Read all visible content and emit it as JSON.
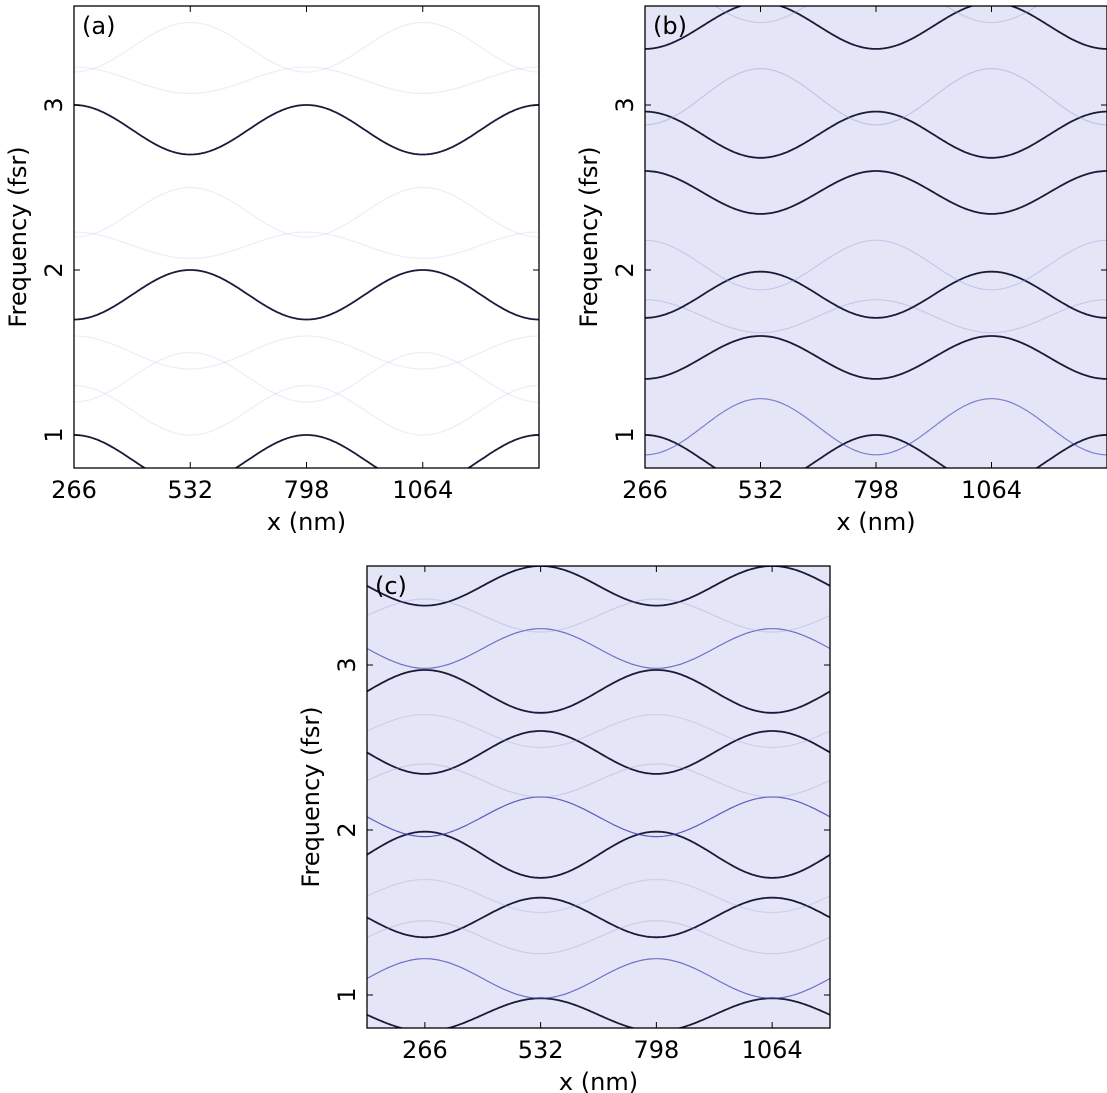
{
  "figure": {
    "panels": [
      {
        "label": "(a)",
        "xlabel": "x (nm)",
        "ylabel": "Frequency (fsr)"
      },
      {
        "label": "(b)",
        "xlabel": "x (nm)",
        "ylabel": "Frequency (fsr)"
      },
      {
        "label": "(c)",
        "xlabel": "x (nm)",
        "ylabel": "Frequency (fsr)"
      }
    ]
  },
  "colors": {
    "curve_dark": "#1a1a3a",
    "curve_mid": "#3a3ab0",
    "curve_light": "#9a9ad8",
    "background_tint": "#e4e6f8"
  },
  "chart_data": [
    {
      "type": "line",
      "panel": "(a)",
      "title": "",
      "xlabel": "x (nm)",
      "ylabel": "Frequency (fsr)",
      "x_ticks": [
        266,
        532,
        798,
        1064
      ],
      "x_tick_labels": [
        "266",
        "532",
        "798",
        "1064"
      ],
      "y_ticks": [
        1,
        2,
        3
      ],
      "y_tick_labels": [
        "1",
        "2",
        "3"
      ],
      "xlim": [
        266,
        1330
      ],
      "ylim": [
        0.8,
        3.6
      ],
      "period_nm": 532,
      "grid": false,
      "series": [
        {
          "center": 0.85,
          "amplitude": 0.15,
          "phase": 0,
          "intensity": 1.0
        },
        {
          "center": 1.15,
          "amplitude": 0.15,
          "phase": 0,
          "intensity": 0.1
        },
        {
          "center": 1.85,
          "amplitude": 0.15,
          "phase": 1,
          "intensity": 1.0
        },
        {
          "center": 1.35,
          "amplitude": 0.15,
          "phase": 1,
          "intensity": 0.1
        },
        {
          "center": 1.5,
          "amplitude": 0.1,
          "phase": 0,
          "intensity": 0.08
        },
        {
          "center": 2.35,
          "amplitude": 0.15,
          "phase": 1,
          "intensity": 0.1
        },
        {
          "center": 2.15,
          "amplitude": 0.08,
          "phase": 0,
          "intensity": 0.08
        },
        {
          "center": 2.85,
          "amplitude": 0.15,
          "phase": 0,
          "intensity": 1.0
        },
        {
          "center": 3.35,
          "amplitude": 0.15,
          "phase": 1,
          "intensity": 0.1
        },
        {
          "center": 3.15,
          "amplitude": 0.08,
          "phase": 0,
          "intensity": 0.08
        }
      ]
    },
    {
      "type": "line",
      "panel": "(b)",
      "title": "",
      "xlabel": "x (nm)",
      "ylabel": "Frequency (fsr)",
      "x_ticks": [
        266,
        532,
        798,
        1064
      ],
      "x_tick_labels": [
        "266",
        "532",
        "798",
        "1064"
      ],
      "y_ticks": [
        1,
        2,
        3
      ],
      "y_tick_labels": [
        "1",
        "2",
        "3"
      ],
      "xlim": [
        266,
        1330
      ],
      "ylim": [
        0.8,
        3.6
      ],
      "period_nm": 532,
      "grid": false,
      "series": [
        {
          "center": 0.85,
          "amplitude": 0.15,
          "phase": 0,
          "intensity": 1.0
        },
        {
          "center": 1.05,
          "amplitude": 0.17,
          "phase": 1,
          "intensity": 0.6
        },
        {
          "center": 1.47,
          "amplitude": 0.13,
          "phase": 1,
          "intensity": 1.0
        },
        {
          "center": 1.72,
          "amplitude": 0.1,
          "phase": 0,
          "intensity": 0.4
        },
        {
          "center": 1.85,
          "amplitude": 0.14,
          "phase": 1,
          "intensity": 1.0
        },
        {
          "center": 2.03,
          "amplitude": 0.15,
          "phase": 0,
          "intensity": 0.4
        },
        {
          "center": 2.47,
          "amplitude": 0.13,
          "phase": 0,
          "intensity": 1.0
        },
        {
          "center": 2.82,
          "amplitude": 0.14,
          "phase": 0,
          "intensity": 1.0
        },
        {
          "center": 3.05,
          "amplitude": 0.17,
          "phase": 1,
          "intensity": 0.45
        },
        {
          "center": 3.48,
          "amplitude": 0.14,
          "phase": 1,
          "intensity": 1.0
        },
        {
          "center": 3.65,
          "amplitude": 0.15,
          "phase": 0,
          "intensity": 0.4
        }
      ]
    },
    {
      "type": "line",
      "panel": "(c)",
      "title": "",
      "xlabel": "x (nm)",
      "ylabel": "Frequency (fsr)",
      "x_ticks": [
        266,
        532,
        798,
        1064
      ],
      "x_tick_labels": [
        "266",
        "532",
        "798",
        "1064"
      ],
      "y_ticks": [
        1,
        2,
        3
      ],
      "y_tick_labels": [
        "1",
        "2",
        "3"
      ],
      "xlim": [
        133,
        1197
      ],
      "ylim": [
        0.8,
        3.6
      ],
      "period_nm": 532,
      "grid": false,
      "series": [
        {
          "center": 0.88,
          "amplitude": 0.1,
          "phase": 1,
          "intensity": 1.0
        },
        {
          "center": 1.1,
          "amplitude": 0.12,
          "phase": 0,
          "intensity": 0.7
        },
        {
          "center": 1.47,
          "amplitude": 0.12,
          "phase": 1,
          "intensity": 1.0
        },
        {
          "center": 1.35,
          "amplitude": 0.1,
          "phase": 0,
          "intensity": 0.35
        },
        {
          "center": 1.6,
          "amplitude": 0.1,
          "phase": 0,
          "intensity": 0.3
        },
        {
          "center": 1.85,
          "amplitude": 0.14,
          "phase": 0,
          "intensity": 1.0
        },
        {
          "center": 2.08,
          "amplitude": 0.12,
          "phase": 1,
          "intensity": 0.8
        },
        {
          "center": 2.47,
          "amplitude": 0.13,
          "phase": 1,
          "intensity": 1.0
        },
        {
          "center": 2.3,
          "amplitude": 0.1,
          "phase": 0,
          "intensity": 0.35
        },
        {
          "center": 2.6,
          "amplitude": 0.1,
          "phase": 0,
          "intensity": 0.3
        },
        {
          "center": 2.84,
          "amplitude": 0.13,
          "phase": 0,
          "intensity": 1.0
        },
        {
          "center": 3.1,
          "amplitude": 0.12,
          "phase": 1,
          "intensity": 0.7
        },
        {
          "center": 3.48,
          "amplitude": 0.12,
          "phase": 1,
          "intensity": 1.0
        },
        {
          "center": 3.3,
          "amplitude": 0.1,
          "phase": 0,
          "intensity": 0.35
        }
      ]
    }
  ]
}
